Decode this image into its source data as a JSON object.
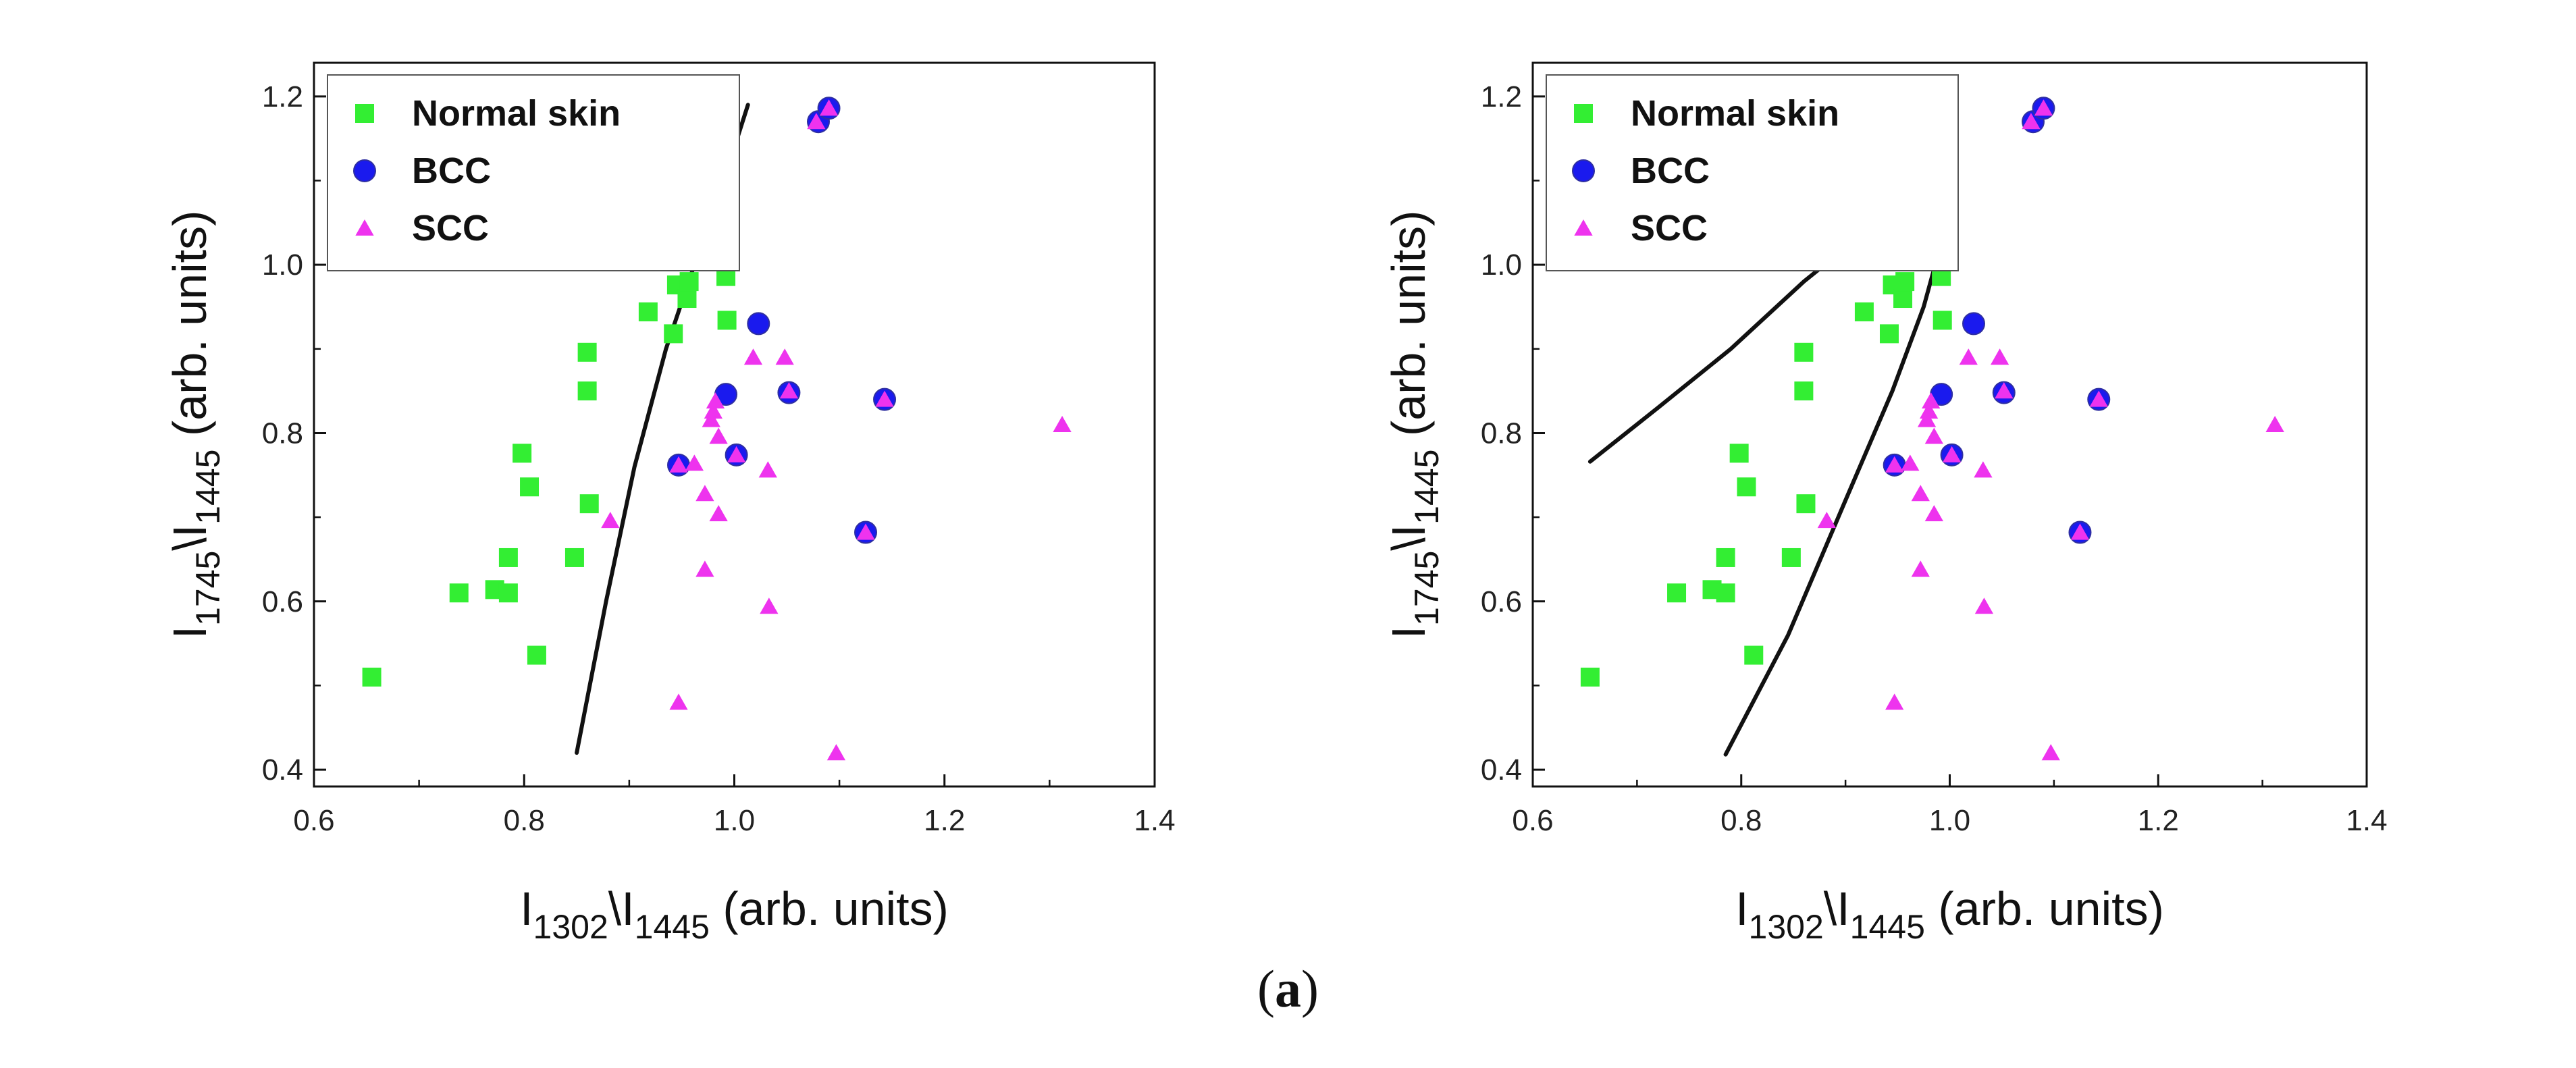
{
  "figure_label_open": "(",
  "figure_label_letter": "a",
  "figure_label_close": ")",
  "chart_data": [
    {
      "type": "scatter",
      "title": "",
      "xlabel": {
        "base": "I",
        "sub1": "1302",
        "mid": "\\I",
        "sub2": "1445",
        "tail": " (arb. units)"
      },
      "ylabel": {
        "base": "I",
        "sub1": "1745",
        "mid": "\\I",
        "sub2": "1445",
        "tail": " (arb. units)"
      },
      "xlim": [
        0.6,
        1.4
      ],
      "ylim": [
        0.38,
        1.24
      ],
      "xticks": [
        "0.6",
        "0.8",
        "1.0",
        "1.2",
        "1.4"
      ],
      "yticks": [
        "0.4",
        "0.6",
        "0.8",
        "1.0",
        "1.2"
      ],
      "grid": false,
      "legend_position": "top-left",
      "series": [
        {
          "name": "Normal skin",
          "marker": "square",
          "color": "#33ee33",
          "points": [
            [
              0.655,
              0.51
            ],
            [
              0.738,
              0.61
            ],
            [
              0.772,
              0.614
            ],
            [
              0.785,
              0.61
            ],
            [
              0.785,
              0.652
            ],
            [
              0.798,
              0.776
            ],
            [
              0.805,
              0.736
            ],
            [
              0.812,
              0.536
            ],
            [
              0.848,
              0.652
            ],
            [
              0.86,
              0.896
            ],
            [
              0.86,
              0.85
            ],
            [
              0.862,
              0.716
            ],
            [
              0.918,
              0.944
            ],
            [
              0.942,
              0.918
            ],
            [
              0.945,
              0.976
            ],
            [
              0.955,
              0.96
            ],
            [
              0.957,
              0.98
            ],
            [
              0.992,
              0.986
            ],
            [
              0.993,
              0.934
            ]
          ]
        },
        {
          "name": "BCC",
          "marker": "circle",
          "color": "#1a1aee",
          "points": [
            [
              0.947,
              0.762
            ],
            [
              0.992,
              0.846
            ],
            [
              1.002,
              0.774
            ],
            [
              1.023,
              0.93
            ],
            [
              1.052,
              0.848
            ],
            [
              1.08,
              1.17
            ],
            [
              1.09,
              1.186
            ],
            [
              1.125,
              0.682
            ],
            [
              1.143,
              0.84
            ]
          ]
        },
        {
          "name": "SCC",
          "marker": "triangle",
          "color": "#ee33ee",
          "points": [
            [
              0.882,
              0.696
            ],
            [
              0.947,
              0.762
            ],
            [
              0.947,
              0.48
            ],
            [
              0.962,
              0.764
            ],
            [
              0.972,
              0.728
            ],
            [
              0.972,
              0.638
            ],
            [
              0.978,
              0.816
            ],
            [
              0.98,
              0.826
            ],
            [
              0.982,
              0.838
            ],
            [
              0.985,
              0.704
            ],
            [
              0.985,
              0.796
            ],
            [
              1.002,
              0.774
            ],
            [
              1.018,
              0.89
            ],
            [
              1.032,
              0.756
            ],
            [
              1.033,
              0.594
            ],
            [
              1.048,
              0.89
            ],
            [
              1.052,
              0.85
            ],
            [
              1.078,
              1.17
            ],
            [
              1.09,
              1.186
            ],
            [
              1.097,
              0.42
            ],
            [
              1.125,
              0.682
            ],
            [
              1.143,
              0.84
            ],
            [
              1.312,
              0.81
            ]
          ]
        }
      ],
      "boundary_curve": [
        [
          0.85,
          0.42
        ],
        [
          0.878,
          0.6
        ],
        [
          0.905,
          0.76
        ],
        [
          0.935,
          0.9
        ],
        [
          0.962,
          1.0
        ],
        [
          0.99,
          1.1
        ],
        [
          1.013,
          1.19
        ]
      ]
    },
    {
      "type": "scatter",
      "title": "",
      "xlabel": {
        "base": "I",
        "sub1": "1302",
        "mid": "\\I",
        "sub2": "1445",
        "tail": " (arb. units)"
      },
      "ylabel": {
        "base": "I",
        "sub1": "1745",
        "mid": "\\I",
        "sub2": "1445",
        "tail": " (arb. units)"
      },
      "xlim": [
        0.6,
        1.4
      ],
      "ylim": [
        0.38,
        1.24
      ],
      "xticks": [
        "0.6",
        "0.8",
        "1.0",
        "1.2",
        "1.4"
      ],
      "yticks": [
        "0.4",
        "0.6",
        "0.8",
        "1.0",
        "1.2"
      ],
      "grid": false,
      "legend_position": "top-left",
      "series": [
        {
          "name": "Normal skin",
          "marker": "square",
          "color": "#33ee33",
          "points": [
            [
              0.655,
              0.51
            ],
            [
              0.738,
              0.61
            ],
            [
              0.772,
              0.614
            ],
            [
              0.785,
              0.61
            ],
            [
              0.785,
              0.652
            ],
            [
              0.798,
              0.776
            ],
            [
              0.805,
              0.736
            ],
            [
              0.812,
              0.536
            ],
            [
              0.848,
              0.652
            ],
            [
              0.86,
              0.896
            ],
            [
              0.86,
              0.85
            ],
            [
              0.862,
              0.716
            ],
            [
              0.918,
              0.944
            ],
            [
              0.942,
              0.918
            ],
            [
              0.945,
              0.976
            ],
            [
              0.955,
              0.96
            ],
            [
              0.957,
              0.98
            ],
            [
              0.992,
              0.986
            ],
            [
              0.993,
              0.934
            ]
          ]
        },
        {
          "name": "BCC",
          "marker": "circle",
          "color": "#1a1aee",
          "points": [
            [
              0.947,
              0.762
            ],
            [
              0.992,
              0.846
            ],
            [
              1.002,
              0.774
            ],
            [
              1.023,
              0.93
            ],
            [
              1.052,
              0.848
            ],
            [
              1.08,
              1.17
            ],
            [
              1.09,
              1.186
            ],
            [
              1.125,
              0.682
            ],
            [
              1.143,
              0.84
            ]
          ]
        },
        {
          "name": "SCC",
          "marker": "triangle",
          "color": "#ee33ee",
          "points": [
            [
              0.882,
              0.696
            ],
            [
              0.947,
              0.762
            ],
            [
              0.947,
              0.48
            ],
            [
              0.962,
              0.764
            ],
            [
              0.972,
              0.728
            ],
            [
              0.972,
              0.638
            ],
            [
              0.978,
              0.816
            ],
            [
              0.98,
              0.826
            ],
            [
              0.982,
              0.838
            ],
            [
              0.985,
              0.704
            ],
            [
              0.985,
              0.796
            ],
            [
              1.002,
              0.774
            ],
            [
              1.018,
              0.89
            ],
            [
              1.032,
              0.756
            ],
            [
              1.033,
              0.594
            ],
            [
              1.048,
              0.89
            ],
            [
              1.052,
              0.85
            ],
            [
              1.078,
              1.17
            ],
            [
              1.09,
              1.186
            ],
            [
              1.097,
              0.42
            ],
            [
              1.125,
              0.682
            ],
            [
              1.143,
              0.84
            ],
            [
              1.312,
              0.81
            ]
          ]
        }
      ],
      "boundary_curve": [
        [
          0.785,
          0.418
        ],
        [
          0.845,
          0.56
        ],
        [
          0.9,
          0.72
        ],
        [
          0.945,
          0.85
        ],
        [
          0.975,
          0.95
        ],
        [
          0.995,
          1.04
        ],
        [
          1.006,
          1.085
        ],
        [
          0.996,
          1.093
        ],
        [
          0.97,
          1.08
        ],
        [
          0.92,
          1.04
        ],
        [
          0.86,
          0.98
        ],
        [
          0.79,
          0.9
        ],
        [
          0.72,
          0.83
        ],
        [
          0.655,
          0.766
        ]
      ]
    }
  ]
}
